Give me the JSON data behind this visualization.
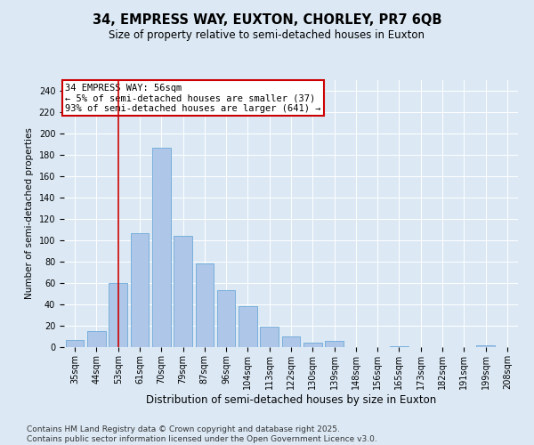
{
  "title": "34, EMPRESS WAY, EUXTON, CHORLEY, PR7 6QB",
  "subtitle": "Size of property relative to semi-detached houses in Euxton",
  "xlabel": "Distribution of semi-detached houses by size in Euxton",
  "ylabel": "Number of semi-detached properties",
  "categories": [
    "35sqm",
    "44sqm",
    "53sqm",
    "61sqm",
    "70sqm",
    "79sqm",
    "87sqm",
    "96sqm",
    "104sqm",
    "113sqm",
    "122sqm",
    "130sqm",
    "139sqm",
    "148sqm",
    "156sqm",
    "165sqm",
    "173sqm",
    "182sqm",
    "191sqm",
    "199sqm",
    "208sqm"
  ],
  "values": [
    7,
    15,
    60,
    107,
    187,
    104,
    78,
    53,
    38,
    19,
    10,
    4,
    6,
    0,
    0,
    1,
    0,
    0,
    0,
    2,
    0
  ],
  "bar_color": "#aec6e8",
  "bar_edge_color": "#5a9fd4",
  "vline_x_index": 2,
  "vline_color": "#cc0000",
  "annotation_text": "34 EMPRESS WAY: 56sqm\n← 5% of semi-detached houses are smaller (37)\n93% of semi-detached houses are larger (641) →",
  "annotation_box_color": "#ffffff",
  "annotation_box_edge_color": "#cc0000",
  "annotation_fontsize": 7.5,
  "title_fontsize": 10.5,
  "subtitle_fontsize": 8.5,
  "xlabel_fontsize": 8.5,
  "ylabel_fontsize": 7.5,
  "tick_fontsize": 7,
  "ylim": [
    0,
    250
  ],
  "yticks": [
    0,
    20,
    40,
    60,
    80,
    100,
    120,
    140,
    160,
    180,
    200,
    220,
    240
  ],
  "background_color": "#dce9f5",
  "plot_background_color": "#dce9f5",
  "footer_text": "Contains HM Land Registry data © Crown copyright and database right 2025.\nContains public sector information licensed under the Open Government Licence v3.0.",
  "footer_fontsize": 6.5
}
